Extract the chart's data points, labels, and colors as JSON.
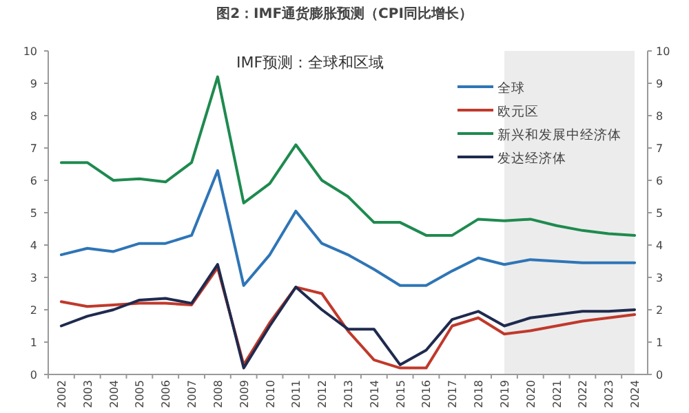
{
  "chart_data": {
    "type": "line",
    "title": "图2：IMF通货膨胀预测（CPI同比增长）",
    "subtitle": "IMF预测：全球和区域",
    "categories": [
      "2002",
      "2003",
      "2004",
      "2005",
      "2006",
      "2007",
      "2008",
      "2009",
      "2010",
      "2011",
      "2012",
      "2013",
      "2014",
      "2015",
      "2016",
      "2017",
      "2018",
      "2019",
      "2020",
      "2021",
      "2022",
      "2023",
      "2024"
    ],
    "series": [
      {
        "name": "全球",
        "color": "#2e75b6",
        "values": [
          3.7,
          3.9,
          3.8,
          4.05,
          4.05,
          4.3,
          6.3,
          2.75,
          3.7,
          5.05,
          4.05,
          3.7,
          3.25,
          2.75,
          2.75,
          3.2,
          3.6,
          3.4,
          3.55,
          3.5,
          3.45,
          3.45,
          3.45
        ]
      },
      {
        "name": "欧元区",
        "color": "#c0392b",
        "values": [
          2.25,
          2.1,
          2.15,
          2.2,
          2.2,
          2.15,
          3.3,
          0.3,
          1.6,
          2.7,
          2.5,
          1.35,
          0.45,
          0.2,
          0.2,
          1.5,
          1.75,
          1.25,
          1.35,
          1.5,
          1.65,
          1.75,
          1.85
        ]
      },
      {
        "name": "新兴和发展中经济体",
        "color": "#1e8a4f",
        "values": [
          6.55,
          6.55,
          6.0,
          6.05,
          5.95,
          6.55,
          9.2,
          5.3,
          5.9,
          7.1,
          6.0,
          5.5,
          4.7,
          4.7,
          4.3,
          4.3,
          4.8,
          4.75,
          4.8,
          4.6,
          4.45,
          4.35,
          4.3
        ]
      },
      {
        "name": "发达经济体",
        "color": "#1f2a4e",
        "values": [
          1.5,
          1.8,
          2.0,
          2.3,
          2.35,
          2.2,
          3.4,
          0.2,
          1.5,
          2.7,
          2.0,
          1.4,
          1.4,
          0.3,
          0.75,
          1.7,
          1.95,
          1.5,
          1.75,
          1.85,
          1.95,
          1.95,
          2.0
        ]
      }
    ],
    "ylim": [
      0,
      10
    ],
    "yticks": [
      0,
      1,
      2,
      3,
      4,
      5,
      6,
      7,
      8,
      9,
      10
    ],
    "y2lim": [
      0,
      10
    ],
    "y2ticks": [
      0,
      1,
      2,
      3,
      4,
      5,
      6,
      7,
      8,
      9,
      10
    ],
    "bands": [
      {
        "axis": "x",
        "from": "2019",
        "to": "2024",
        "color": "#ececec"
      }
    ],
    "legend": "top right",
    "grid": false,
    "line_style": "solid",
    "marker": "none"
  }
}
